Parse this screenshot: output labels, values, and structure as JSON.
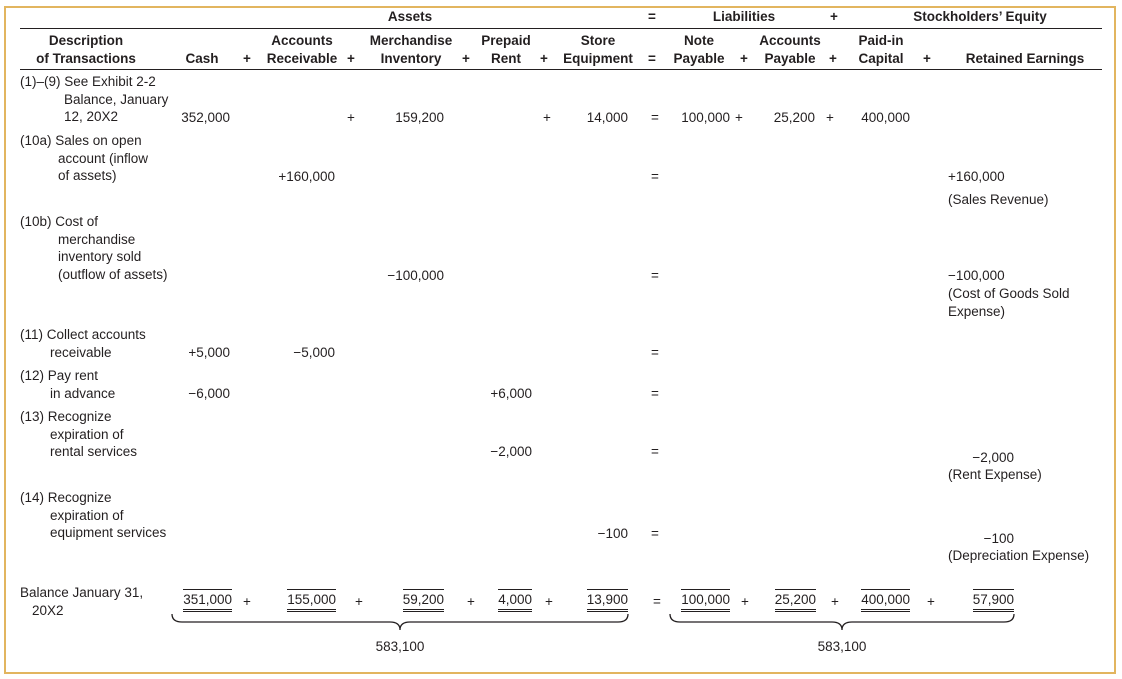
{
  "header": {
    "assets": "Assets",
    "eq": "=",
    "liabilities": "Liabilities",
    "plus": "+",
    "equity": "Stockholders’ Equity",
    "description_l1": "Description",
    "description_l2": "of Transactions",
    "cash": "Cash",
    "ar_l1": "Accounts",
    "ar_l2": "Receivable",
    "inv_l1": "Merchandise",
    "inv_l2": "Inventory",
    "rent_l1": "Prepaid",
    "rent_l2": "Rent",
    "store_l1": "Store",
    "store_l2": "Equipment",
    "np_l1": "Note",
    "np_l2": "Payable",
    "ap_l1": "Accounts",
    "ap_l2": "Payable",
    "pic_l1": "Paid-in",
    "pic_l2": "Capital",
    "re": "Retained Earnings"
  },
  "rows": [
    {
      "desc": [
        "(1)–(9) See Exhibit 2-2",
        "Balance, January",
        "12, 20X2"
      ],
      "cash": "352,000",
      "ar": "",
      "inv": "159,200",
      "rent": "",
      "store": "14,000",
      "np": "100,000",
      "ap": "25,200",
      "pic": "400,000",
      "re": "",
      "re_note": ""
    },
    {
      "desc": [
        "(10a) Sales on open",
        "account (inflow",
        "of assets)"
      ],
      "cash": "",
      "ar": "+160,000",
      "inv": "",
      "rent": "",
      "store": "",
      "np": "",
      "ap": "",
      "pic": "",
      "re": "+160,000",
      "re_note": [
        "(Sales Revenue)"
      ]
    },
    {
      "desc": [
        "(10b) Cost of",
        "merchandise",
        "inventory sold",
        "(outflow of assets)"
      ],
      "cash": "",
      "ar": "",
      "inv": "−100,000",
      "rent": "",
      "store": "",
      "np": "",
      "ap": "",
      "pic": "",
      "re": "−100,000",
      "re_note": [
        "(Cost of Goods Sold",
        "Expense)"
      ]
    },
    {
      "desc": [
        "(11) Collect accounts",
        "receivable"
      ],
      "cash": "+5,000",
      "ar": "−5,000",
      "inv": "",
      "rent": "",
      "store": "",
      "np": "",
      "ap": "",
      "pic": "",
      "re": "",
      "re_note": ""
    },
    {
      "desc": [
        "(12) Pay rent",
        "in advance"
      ],
      "cash": "−6,000",
      "ar": "",
      "inv": "",
      "rent": "+6,000",
      "store": "",
      "np": "",
      "ap": "",
      "pic": "",
      "re": "",
      "re_note": ""
    },
    {
      "desc": [
        "(13) Recognize",
        "expiration of",
        "rental services"
      ],
      "cash": "",
      "ar": "",
      "inv": "",
      "rent": "−2,000",
      "store": "",
      "np": "",
      "ap": "",
      "pic": "",
      "re": "−2,000",
      "re_note": [
        "(Rent Expense)"
      ]
    },
    {
      "desc": [
        "(14) Recognize",
        "expiration of",
        "equipment services"
      ],
      "cash": "",
      "ar": "",
      "inv": "",
      "rent": "",
      "store": "−100",
      "np": "",
      "ap": "",
      "pic": "",
      "re": "−100",
      "re_note": [
        "(Depreciation Expense)"
      ]
    }
  ],
  "balance": {
    "desc": [
      "Balance January 31,",
      "20X2"
    ],
    "cash": "351,000",
    "ar": "155,000",
    "inv": "59,200",
    "rent": "4,000",
    "store": "13,900",
    "np": "100,000",
    "ap": "25,200",
    "pic": "400,000",
    "re": "57,900"
  },
  "totals": {
    "assets": "583,100",
    "liabilities_equity": "583,100"
  }
}
